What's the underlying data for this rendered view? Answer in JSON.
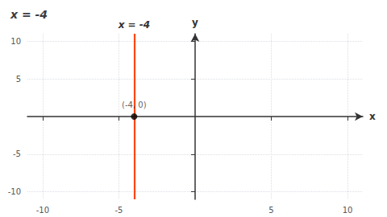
{
  "chart_data": {
    "type": "line",
    "title": "x = -4",
    "x_label": "x",
    "y_label": "y",
    "xlim": [
      -11,
      11
    ],
    "ylim": [
      -11,
      11
    ],
    "xticks": [
      -10,
      -5,
      5,
      10
    ],
    "yticks": [
      -10,
      -5,
      5,
      10
    ],
    "grid": true,
    "series": [
      {
        "type": "vline",
        "x": -4,
        "color": "#FF4500",
        "annotation": "x = -4"
      },
      {
        "type": "scatter",
        "color": "#000000",
        "marker": "circle",
        "x": [
          -4
        ],
        "values": [
          0
        ],
        "value_labels": [
          "(-4, 0)"
        ]
      }
    ]
  }
}
